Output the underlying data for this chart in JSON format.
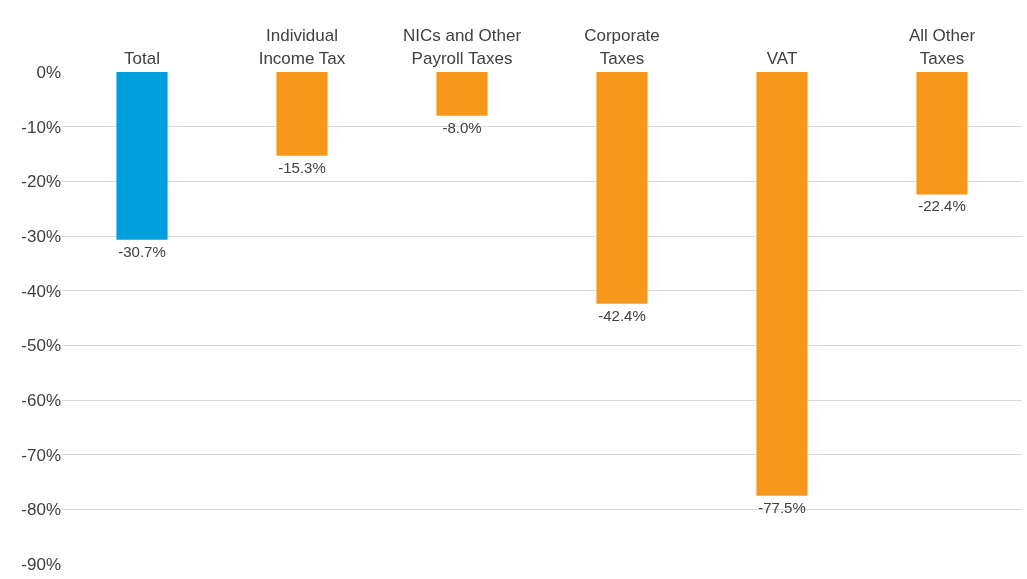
{
  "chart_data": {
    "type": "bar",
    "categories": [
      "Total",
      "Individual Income Tax",
      "NICs and Other Payroll Taxes",
      "Corporate Taxes",
      "VAT",
      "All Other Taxes"
    ],
    "values": [
      -30.7,
      -15.3,
      -8.0,
      -42.4,
      -77.5,
      -22.4
    ],
    "colors": [
      "#009fdb",
      "#f7981d",
      "#f7981d",
      "#f7981d",
      "#f7981d",
      "#f7981d"
    ],
    "value_labels": [
      "-30.7%",
      "-15.3%",
      "-8.0%",
      "-42.4%",
      "-77.5%",
      "-22.4%"
    ],
    "ylim": [
      -90,
      0
    ],
    "yticks": [
      {
        "value": 0,
        "label": "0%"
      },
      {
        "value": -10,
        "label": "-10%"
      },
      {
        "value": -20,
        "label": "-20%"
      },
      {
        "value": -30,
        "label": "-30%"
      },
      {
        "value": -40,
        "label": "-40%"
      },
      {
        "value": -50,
        "label": "-50%"
      },
      {
        "value": -60,
        "label": "-60%"
      },
      {
        "value": -70,
        "label": "-70%"
      },
      {
        "value": -80,
        "label": "-80%"
      },
      {
        "value": -90,
        "label": "-90%"
      }
    ],
    "grid": "y"
  }
}
